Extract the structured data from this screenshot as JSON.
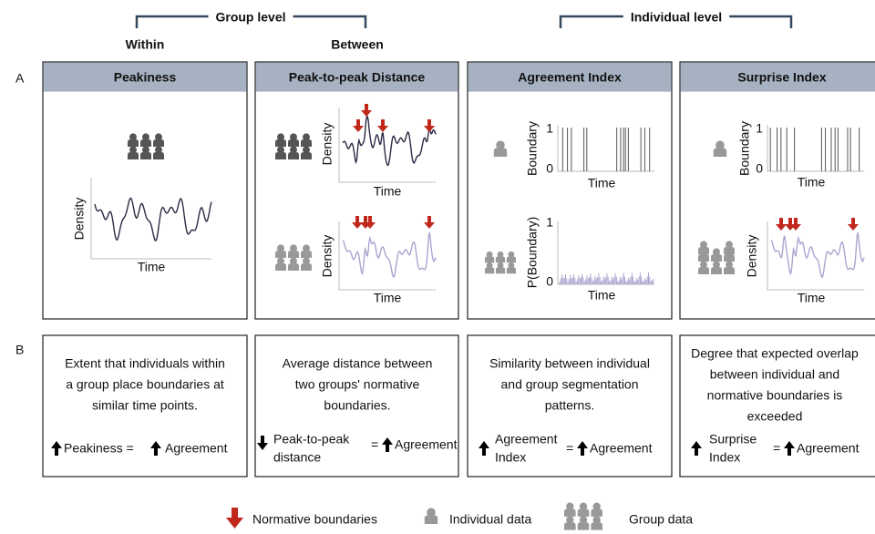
{
  "brackets": [
    {
      "label": "Group level"
    },
    {
      "label": "Individual level"
    }
  ],
  "column_labels": [
    "Within",
    "Between"
  ],
  "row_labels": [
    "A",
    "B"
  ],
  "panels": [
    {
      "title": "Peakiness",
      "plots": [
        {
          "y_label": "Density",
          "x_label": "Time"
        }
      ],
      "description": [
        "Extent that individuals within",
        "a group place boundaries at",
        "similar time points."
      ],
      "formula": {
        "left": [
          "Peakiness ="
        ],
        "right": "Agreement"
      }
    },
    {
      "title": "Peak-to-peak Distance",
      "plots": [
        {
          "y_label": "Density",
          "x_label": "Time"
        },
        {
          "y_label": "Density",
          "x_label": "Time"
        }
      ],
      "description": [
        "Average distance between",
        "two groups' normative",
        "boundaries."
      ],
      "formula": {
        "left": [
          "Peak-to-peak",
          "distance"
        ],
        "equals": "=",
        "right": "Agreement"
      }
    },
    {
      "title": "Agreement Index",
      "plots": [
        {
          "y_label": "Boundary",
          "x_label": "Time",
          "y_ticks": [
            1,
            0
          ]
        },
        {
          "y_label": "P(Boundary)",
          "x_label": "Time",
          "y_ticks": [
            1,
            0
          ]
        }
      ],
      "description": [
        "Similarity between individual",
        "and group segmentation",
        "patterns."
      ],
      "formula": {
        "left": [
          "Agreement",
          "Index"
        ],
        "equals": "=",
        "right": "Agreement"
      }
    },
    {
      "title": "Surprise Index",
      "plots": [
        {
          "y_label": "Boundary",
          "x_label": "Time",
          "y_ticks": [
            1,
            0
          ]
        },
        {
          "y_label": "Density",
          "x_label": "Time"
        }
      ],
      "description": [
        "Degree that expected overlap",
        "between individual and",
        "normative boundaries is",
        "exceeded"
      ],
      "formula": {
        "left": [
          "Surprise",
          "Index"
        ],
        "equals": "=",
        "right": "Agreement"
      }
    }
  ],
  "legend": [
    "Normative boundaries",
    "Individual data",
    "Group data"
  ]
}
